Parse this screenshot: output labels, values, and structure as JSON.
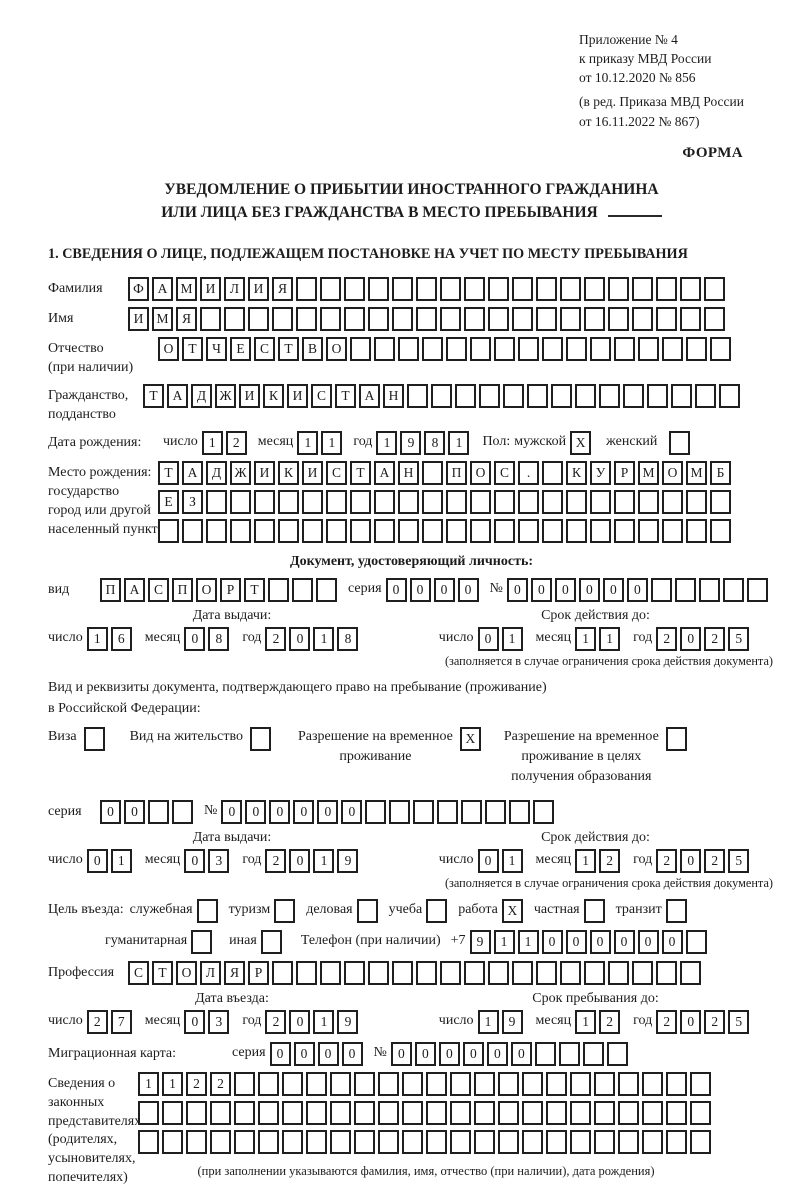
{
  "colors": {
    "paper": "#ffffff",
    "ink": "#1c1c1c"
  },
  "labels": {
    "day": "число",
    "month": "месяц",
    "year": "год",
    "series": "серия",
    "number": "№"
  },
  "header": {
    "appendix": [
      "Приложение № 4",
      "к приказу МВД России",
      "от 10.12.2020 № 856"
    ],
    "revision": [
      "(в ред. Приказа МВД России",
      "от 16.11.2022 № 867)"
    ],
    "form_label": "ФОРМА"
  },
  "title": {
    "line1": "УВЕДОМЛЕНИЕ О ПРИБЫТИИ ИНОСТРАННОГО ГРАЖДАНИНА",
    "line2": "ИЛИ ЛИЦА БЕЗ ГРАЖДАНСТВА В МЕСТО ПРЕБЫВАНИЯ"
  },
  "section1_heading": "1. СВЕДЕНИЯ О ЛИЦЕ, ПОДЛЕЖАЩЕМ ПОСТАНОВКЕ НА УЧЕТ ПО МЕСТУ ПРЕБЫВАНИЯ",
  "person": {
    "surname_label": "Фамилия",
    "surname": {
      "chars": "ФАМИЛИЯ",
      "count": 25
    },
    "name_label": "Имя",
    "name": {
      "chars": "ИМЯ",
      "count": 25
    },
    "patronymic_label1": "Отчество",
    "patronymic_label2": "(при наличии)",
    "patronymic": {
      "chars": "ОТЧЕСТВО",
      "count": 24
    },
    "citizenship_label1": "Гражданство,",
    "citizenship_label2": "подданство",
    "citizenship": {
      "chars": "ТАДЖИКИСТАН",
      "count": 25
    },
    "birth_date_label": "Дата рождения:",
    "birth_day": {
      "chars": "12",
      "count": 2
    },
    "birth_month": {
      "chars": "11",
      "count": 2
    },
    "birth_year": {
      "chars": "1981",
      "count": 4
    },
    "sex_label": "Пол:",
    "male_label": "мужской",
    "male_box": {
      "chars": "X",
      "count": 1
    },
    "female_label": "женский",
    "female_box": {
      "chars": "",
      "count": 1
    },
    "birth_place_label1": "Место рождения:",
    "birth_place_label2": "государство",
    "birth_place_label3": "город или другой",
    "birth_place_label4": "населенный пункт",
    "birth_place_row1": {
      "chars": "ТАДЖИКИСТАН ПОС. КУРМОМБ",
      "count": 24
    },
    "birth_place_row2": {
      "chars": "ЕЗ",
      "count": 24
    },
    "birth_place_row3": {
      "chars": "",
      "count": 24
    }
  },
  "identity_doc": {
    "heading": "Документ, удостоверяющий личность:",
    "kind_label": "вид",
    "kind": {
      "chars": "ПАСПОРТ",
      "count": 10
    },
    "series": {
      "chars": "0000",
      "count": 4
    },
    "number": {
      "chars": "000000",
      "count": 11
    },
    "issue_header": "Дата выдачи:",
    "issue_day": {
      "chars": "16",
      "count": 2
    },
    "issue_month": {
      "chars": "08",
      "count": 2
    },
    "issue_year": {
      "chars": "2018",
      "count": 4
    },
    "expiry_header": "Срок действия до:",
    "expiry_day": {
      "chars": "01",
      "count": 2
    },
    "expiry_month": {
      "chars": "11",
      "count": 2
    },
    "expiry_year": {
      "chars": "2025",
      "count": 4
    },
    "note": "(заполняется в случае ограничения срока действия документа)"
  },
  "residence_doc": {
    "intro_line1": "Вид и реквизиты документа, подтверждающего право на пребывание (проживание)",
    "intro_line2": "в Российской Федерации:",
    "options": [
      {
        "lines": [
          "Виза"
        ],
        "box": {
          "chars": "",
          "count": 1
        }
      },
      {
        "lines": [
          "Вид на жительство"
        ],
        "box": {
          "chars": "",
          "count": 1
        }
      },
      {
        "lines": [
          "Разрешение на временное",
          "проживание"
        ],
        "box": {
          "chars": "X",
          "count": 1
        }
      },
      {
        "lines": [
          "Разрешение на временное",
          "проживание в целях",
          "получения образования"
        ],
        "box": {
          "chars": "",
          "count": 1
        }
      }
    ],
    "series": {
      "chars": "00",
      "count": 4
    },
    "number": {
      "chars": "000000",
      "count": 14
    },
    "issue_header": "Дата выдачи:",
    "issue_day": {
      "chars": "01",
      "count": 2
    },
    "issue_month": {
      "chars": "03",
      "count": 2
    },
    "issue_year": {
      "chars": "2019",
      "count": 4
    },
    "expiry_header": "Срок действия до:",
    "expiry_day": {
      "chars": "01",
      "count": 2
    },
    "expiry_month": {
      "chars": "12",
      "count": 2
    },
    "expiry_year": {
      "chars": "2025",
      "count": 4
    },
    "note": "(заполняется в случае ограничения срока действия документа)"
  },
  "visit": {
    "purpose_label": "Цель въезда:",
    "purposes": [
      {
        "label": "служебная",
        "box": {
          "chars": "",
          "count": 1
        }
      },
      {
        "label": "туризм",
        "box": {
          "chars": "",
          "count": 1
        }
      },
      {
        "label": "деловая",
        "box": {
          "chars": "",
          "count": 1
        }
      },
      {
        "label": "учеба",
        "box": {
          "chars": "",
          "count": 1
        }
      },
      {
        "label": "работа",
        "box": {
          "chars": "X",
          "count": 1
        }
      },
      {
        "label": "частная",
        "box": {
          "chars": "",
          "count": 1
        }
      },
      {
        "label": "транзит",
        "box": {
          "chars": "",
          "count": 1
        }
      },
      {
        "label": "гуманитарная",
        "box": {
          "chars": "",
          "count": 1
        }
      },
      {
        "label": "иная",
        "box": {
          "chars": "",
          "count": 1
        }
      }
    ],
    "phone_label": "Телефон (при наличии)",
    "phone_prefix": "+7",
    "phone": {
      "chars": "911000000",
      "count": 10
    },
    "profession_label": "Профессия",
    "profession": {
      "chars": "СТОЛЯР",
      "count": 24
    },
    "entry_header": "Дата въезда:",
    "entry_day": {
      "chars": "27",
      "count": 2
    },
    "entry_month": {
      "chars": "03",
      "count": 2
    },
    "entry_year": {
      "chars": "2019",
      "count": 4
    },
    "stay_header": "Срок пребывания до:",
    "stay_day": {
      "chars": "19",
      "count": 2
    },
    "stay_month": {
      "chars": "12",
      "count": 2
    },
    "stay_year": {
      "chars": "2025",
      "count": 4
    },
    "migration_card_label": "Миграционная карта:",
    "mc_series": {
      "chars": "0000",
      "count": 4
    },
    "mc_number": {
      "chars": "000000",
      "count": 10
    },
    "guardians_label1": "Сведения о",
    "guardians_label2": "законных",
    "guardians_label3": "представителях",
    "guardians_label4": "(родителях,",
    "guardians_label5": "усыновителях,",
    "guardians_label6": "попечителях)",
    "guardians_row1": {
      "chars": "1122",
      "count": 24
    },
    "guardians_row2": {
      "chars": "",
      "count": 24
    },
    "guardians_row3": {
      "chars": "",
      "count": 24
    },
    "guardians_note": "(при заполнении указываются фамилия, имя, отчество (при наличии), дата рождения)"
  }
}
